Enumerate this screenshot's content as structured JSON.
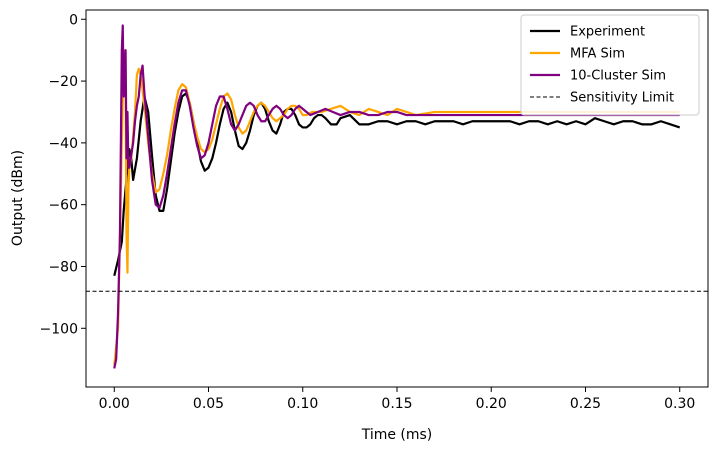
{
  "chart_data": {
    "type": "line",
    "title": "",
    "xlabel": "Time (ms)",
    "ylabel": "Output (dBm)",
    "xlim": [
      -0.015,
      0.315
    ],
    "ylim": [
      -119,
      3
    ],
    "xticks": [
      0.0,
      0.05,
      0.1,
      0.15,
      0.2,
      0.25,
      0.3
    ],
    "xtick_labels": [
      "0.00",
      "0.05",
      "0.10",
      "0.15",
      "0.20",
      "0.25",
      "0.30"
    ],
    "yticks": [
      0,
      -20,
      -40,
      -60,
      -80,
      -100
    ],
    "ytick_labels": [
      "0",
      "−20",
      "−40",
      "−60",
      "−80",
      "−100"
    ],
    "legend_position": "top-right",
    "series": [
      {
        "name": "Experiment",
        "color": "#000000",
        "style": "solid",
        "x": [
          0.0,
          0.002,
          0.004,
          0.005,
          0.006,
          0.007,
          0.008,
          0.009,
          0.01,
          0.012,
          0.014,
          0.016,
          0.018,
          0.02,
          0.022,
          0.024,
          0.026,
          0.028,
          0.03,
          0.032,
          0.034,
          0.036,
          0.038,
          0.04,
          0.042,
          0.044,
          0.046,
          0.048,
          0.05,
          0.052,
          0.054,
          0.056,
          0.058,
          0.06,
          0.062,
          0.064,
          0.066,
          0.068,
          0.07,
          0.072,
          0.074,
          0.076,
          0.078,
          0.08,
          0.082,
          0.084,
          0.086,
          0.088,
          0.09,
          0.092,
          0.094,
          0.096,
          0.098,
          0.1,
          0.102,
          0.104,
          0.106,
          0.108,
          0.11,
          0.112,
          0.115,
          0.118,
          0.12,
          0.125,
          0.13,
          0.135,
          0.14,
          0.145,
          0.15,
          0.155,
          0.16,
          0.165,
          0.17,
          0.175,
          0.18,
          0.185,
          0.19,
          0.195,
          0.2,
          0.205,
          0.21,
          0.215,
          0.22,
          0.225,
          0.23,
          0.235,
          0.24,
          0.245,
          0.25,
          0.255,
          0.26,
          0.265,
          0.27,
          0.275,
          0.28,
          0.285,
          0.29,
          0.295,
          0.3
        ],
        "y": [
          -83,
          -78,
          -72,
          -62,
          -55,
          -48,
          -42,
          -45,
          -52,
          -45,
          -33,
          -25,
          -30,
          -44,
          -57,
          -62,
          -62,
          -55,
          -46,
          -37,
          -30,
          -25,
          -24,
          -27,
          -33,
          -40,
          -46,
          -49,
          -48,
          -45,
          -40,
          -34,
          -29,
          -27,
          -30,
          -36,
          -41,
          -42,
          -40,
          -36,
          -31,
          -28,
          -27,
          -29,
          -33,
          -36,
          -37,
          -34,
          -30,
          -29,
          -29,
          -31,
          -34,
          -35,
          -35,
          -34,
          -32,
          -31,
          -31,
          -32,
          -34,
          -34,
          -32,
          -31,
          -34,
          -34,
          -33,
          -33,
          -34,
          -33,
          -33,
          -34,
          -33,
          -33,
          -33,
          -34,
          -33,
          -33,
          -33,
          -33,
          -33,
          -34,
          -33,
          -33,
          -34,
          -33,
          -34,
          -33,
          -34,
          -32,
          -33,
          -34,
          -33,
          -33,
          -34,
          -34,
          -33,
          -34,
          -35
        ]
      },
      {
        "name": "MFA Sim",
        "color": "#ffa500",
        "style": "solid",
        "x": [
          0.0,
          0.002,
          0.003,
          0.004,
          0.005,
          0.006,
          0.0065,
          0.007,
          0.0075,
          0.008,
          0.009,
          0.01,
          0.011,
          0.012,
          0.013,
          0.014,
          0.016,
          0.018,
          0.02,
          0.022,
          0.024,
          0.026,
          0.028,
          0.03,
          0.032,
          0.034,
          0.036,
          0.038,
          0.04,
          0.042,
          0.044,
          0.046,
          0.048,
          0.05,
          0.052,
          0.054,
          0.056,
          0.058,
          0.06,
          0.062,
          0.064,
          0.066,
          0.068,
          0.07,
          0.072,
          0.074,
          0.076,
          0.078,
          0.08,
          0.082,
          0.084,
          0.086,
          0.088,
          0.09,
          0.092,
          0.094,
          0.096,
          0.098,
          0.1,
          0.102,
          0.105,
          0.11,
          0.115,
          0.12,
          0.125,
          0.13,
          0.135,
          0.14,
          0.145,
          0.15,
          0.155,
          0.16,
          0.17,
          0.18,
          0.19,
          0.2,
          0.21,
          0.22,
          0.23,
          0.24,
          0.25,
          0.26,
          0.27,
          0.28,
          0.29,
          0.3
        ],
        "y": [
          -112,
          -100,
          -70,
          -40,
          -10,
          -25,
          -70,
          -82,
          -55,
          -48,
          -45,
          -38,
          -30,
          -18,
          -16,
          -18,
          -28,
          -40,
          -50,
          -56,
          -55,
          -50,
          -44,
          -36,
          -29,
          -23,
          -21,
          -22,
          -27,
          -33,
          -38,
          -42,
          -43,
          -42,
          -39,
          -34,
          -29,
          -25,
          -24,
          -26,
          -31,
          -35,
          -37,
          -36,
          -33,
          -30,
          -28,
          -27,
          -28,
          -30,
          -32,
          -33,
          -32,
          -31,
          -29,
          -28,
          -28,
          -29,
          -31,
          -31,
          -30,
          -30,
          -29,
          -28,
          -30,
          -31,
          -29,
          -30,
          -31,
          -29,
          -30,
          -31,
          -30,
          -30,
          -30,
          -30,
          -30,
          -30,
          -30,
          -30,
          -30,
          -30,
          -30,
          -30,
          -30,
          -30
        ]
      },
      {
        "name": "10-Cluster Sim",
        "color": "#800080",
        "style": "solid",
        "x": [
          0.0,
          0.001,
          0.002,
          0.003,
          0.0035,
          0.004,
          0.0045,
          0.005,
          0.0055,
          0.006,
          0.0065,
          0.007,
          0.0075,
          0.008,
          0.009,
          0.01,
          0.011,
          0.012,
          0.013,
          0.014,
          0.015,
          0.016,
          0.018,
          0.02,
          0.022,
          0.024,
          0.026,
          0.028,
          0.03,
          0.032,
          0.034,
          0.036,
          0.038,
          0.04,
          0.042,
          0.044,
          0.046,
          0.048,
          0.05,
          0.052,
          0.054,
          0.056,
          0.058,
          0.06,
          0.062,
          0.064,
          0.066,
          0.068,
          0.07,
          0.072,
          0.074,
          0.076,
          0.078,
          0.08,
          0.082,
          0.084,
          0.086,
          0.088,
          0.09,
          0.092,
          0.094,
          0.096,
          0.098,
          0.1,
          0.102,
          0.104,
          0.108,
          0.112,
          0.116,
          0.12,
          0.125,
          0.13,
          0.135,
          0.14,
          0.145,
          0.15,
          0.155,
          0.16,
          0.17,
          0.18,
          0.19,
          0.2,
          0.21,
          0.22,
          0.23,
          0.24,
          0.25,
          0.26,
          0.27,
          0.28,
          0.29,
          0.3
        ],
        "y": [
          -113,
          -110,
          -95,
          -70,
          -40,
          -10,
          -2,
          -25,
          -15,
          -10,
          -45,
          -30,
          -48,
          -48,
          -44,
          -40,
          -33,
          -28,
          -25,
          -18,
          -15,
          -24,
          -38,
          -52,
          -60,
          -61,
          -57,
          -50,
          -42,
          -34,
          -27,
          -23,
          -23,
          -28,
          -35,
          -41,
          -45,
          -44,
          -40,
          -34,
          -28,
          -25,
          -25,
          -29,
          -34,
          -36,
          -34,
          -31,
          -28,
          -27,
          -28,
          -31,
          -33,
          -33,
          -31,
          -29,
          -28,
          -29,
          -31,
          -32,
          -31,
          -29,
          -28,
          -29,
          -30,
          -31,
          -30,
          -29,
          -30,
          -31,
          -30,
          -30,
          -31,
          -31,
          -30,
          -30,
          -31,
          -31,
          -31,
          -31,
          -31,
          -31,
          -31,
          -31,
          -31,
          -31,
          -31,
          -31,
          -31,
          -31,
          -31,
          -31
        ]
      },
      {
        "name": "Sensitivity Limit",
        "color": "#000000",
        "style": "dashed",
        "y_constant": -88
      }
    ]
  }
}
